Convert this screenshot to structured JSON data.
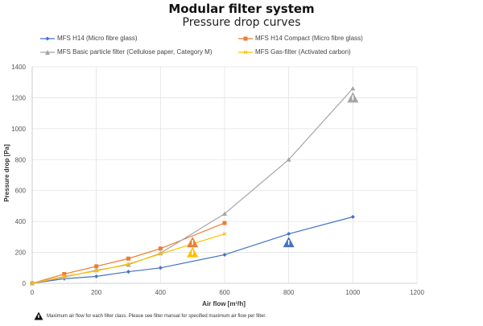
{
  "chart_data": {
    "type": "line",
    "title": "Modular filter system",
    "subtitle": "Pressure drop curves",
    "xlabel": "Air flow [m³/h]",
    "ylabel": "Pressure drop [Pa]",
    "xlim": [
      0,
      1200
    ],
    "ylim": [
      0,
      1400
    ],
    "xticks": [
      "0",
      "200",
      "400",
      "600",
      "800",
      "1000",
      "1200"
    ],
    "yticks": [
      "0",
      "200",
      "400",
      "600",
      "800",
      "1000",
      "1200",
      "1400"
    ],
    "grid": true,
    "legend_position": "top",
    "series": [
      {
        "name": "MFS H14 (Micro fibre glass)",
        "color": "#4472c4",
        "marker": "diamond",
        "x": [
          0,
          100,
          200,
          300,
          400,
          600,
          800,
          1000
        ],
        "y": [
          0,
          30,
          45,
          75,
          100,
          185,
          320,
          430
        ]
      },
      {
        "name": "MFS H14 Compact (Micro fibre glass)",
        "color": "#ed7d31",
        "marker": "square",
        "x": [
          0,
          100,
          200,
          300,
          400,
          600
        ],
        "y": [
          0,
          60,
          110,
          160,
          225,
          390
        ]
      },
      {
        "name": "MFS Basic particle filter (Cellulose paper, Category M)",
        "color": "#a5a5a5",
        "marker": "triangle",
        "x": [
          0,
          100,
          200,
          300,
          400,
          600,
          800,
          1000
        ],
        "y": [
          0,
          40,
          85,
          120,
          195,
          450,
          800,
          1260
        ]
      },
      {
        "name": "MFS Gas-filter (Activated carbon)",
        "color": "#ffc000",
        "marker": "x",
        "x": [
          0,
          100,
          200,
          300,
          400,
          600
        ],
        "y": [
          0,
          45,
          80,
          125,
          190,
          320
        ]
      }
    ],
    "max_flow_markers": [
      {
        "series": "MFS H14 (Micro fibre glass)",
        "color": "#4472c4",
        "x": 800,
        "y": 265
      },
      {
        "series": "MFS H14 Compact (Micro fibre glass)",
        "color": "#ed7d31",
        "x": 500,
        "y": 265
      },
      {
        "series": "MFS Basic particle filter (Cellulose paper, Category M)",
        "color": "#a5a5a5",
        "x": 1000,
        "y": 1200
      },
      {
        "series": "MFS Gas-filter (Activated carbon)",
        "color": "#ffc000",
        "x": 500,
        "y": 200
      }
    ],
    "note": "Maximum air flow for each filter class. Please see filter manual for specified maximum air flow per filter."
  }
}
